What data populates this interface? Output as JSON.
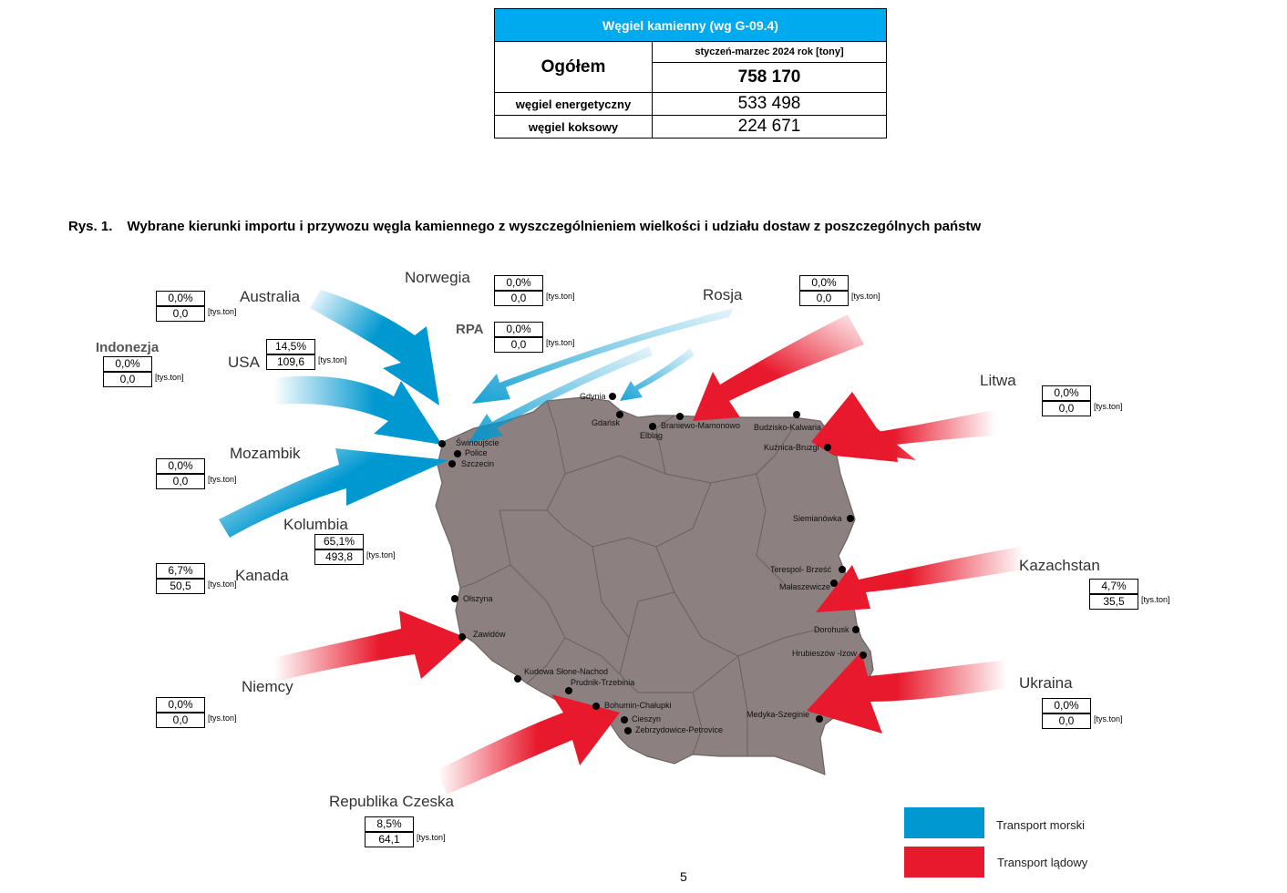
{
  "table": {
    "title": "Węgiel kamienny (wg G-09.4)",
    "total_label": "Ogółem",
    "period": "styczeń-marzec 2024 rok [tony]",
    "total_value": "758 170",
    "rows": [
      {
        "label": "węgiel energetyczny",
        "value": "533 498"
      },
      {
        "label": "węgiel koksowy",
        "value": "224 671"
      }
    ]
  },
  "caption": {
    "number": "Rys. 1.",
    "text": "Wybrane kierunki importu i przywozu węgla kamiennego z wyszczególnieniem wielkości i udziału dostaw z poszczególnych państw"
  },
  "unit": "[tys.ton]",
  "countries": {
    "australia": {
      "name": "Australia",
      "share": "0,0%",
      "volume": "0,0",
      "transport": "sea"
    },
    "indonezja": {
      "name": "Indonezja",
      "share": "0,0%",
      "volume": "0,0",
      "transport": "sea"
    },
    "usa": {
      "name": "USA",
      "share": "14,5%",
      "volume": "109,6",
      "transport": "sea"
    },
    "mozambik": {
      "name": "Mozambik",
      "share": "0,0%",
      "volume": "0,0",
      "transport": "sea"
    },
    "kolumbia": {
      "name": "Kolumbia",
      "share": "65,1%",
      "volume": "493,8",
      "transport": "sea"
    },
    "kanada": {
      "name": "Kanada",
      "share": "6,7%",
      "volume": "50,5",
      "transport": "sea"
    },
    "norwegia": {
      "name": "Norwegia",
      "share": "0,0%",
      "volume": "0,0",
      "transport": "sea"
    },
    "rpa": {
      "name": "RPA",
      "share": "0,0%",
      "volume": "0,0",
      "transport": "sea"
    },
    "rosja": {
      "name": "Rosja",
      "share": "0,0%",
      "volume": "0,0",
      "transport": "land"
    },
    "litwa": {
      "name": "Litwa",
      "share": "0,0%",
      "volume": "0,0",
      "transport": "land"
    },
    "kazachstan": {
      "name": "Kazachstan",
      "share": "4,7%",
      "volume": "35,5",
      "transport": "land"
    },
    "ukraina": {
      "name": "Ukraina",
      "share": "0,0%",
      "volume": "0,0",
      "transport": "land"
    },
    "niemcy": {
      "name": "Niemcy",
      "share": "0,0%",
      "volume": "0,0",
      "transport": "land"
    },
    "czechy": {
      "name": "Republika Czeska",
      "share": "8,5%",
      "volume": "64,1",
      "transport": "land"
    }
  },
  "cities": {
    "gdynia": "Gdynia",
    "gdansk": "Gdańsk",
    "elblag": "Elbląg",
    "braniewo": "Braniewo-Mamonowo",
    "budzisko": "Budzisko-Kalwaria",
    "kuznica": "Kuźnica-Bruzgi",
    "swinoujscie": "Świnoujście",
    "police": "Police",
    "szczecin": "Szczecin",
    "siemianowka": "Siemianówka",
    "terespol": "Terespol- Brześć",
    "malaszewicze": "Małaszewicze",
    "dorohusk": "Dorohusk",
    "hrubieszow": "Hrubieszów -Izow",
    "medyka": "Medyka-Szeginie",
    "olszyna": "Olszyna",
    "zawidow": "Zawidów",
    "kudowa": "Kudowa Słone-Nachod",
    "prudnik": "Prudnik-Trzebinia",
    "bohumin": "Bohumin-Chałupki",
    "cieszyn": "Cieszyn",
    "zebrzydowice": "Zebrzydowice-Petrovice"
  },
  "legend": {
    "sea": {
      "label": "Transport morski",
      "color": "#0098d0"
    },
    "land": {
      "label": "Transport lądowy",
      "color": "#e8192c"
    }
  },
  "colors": {
    "header": "#00aaee",
    "map": "#8c8080",
    "sea_arrow": "#0098d0",
    "land_arrow": "#e8192c"
  },
  "page_number": "5"
}
